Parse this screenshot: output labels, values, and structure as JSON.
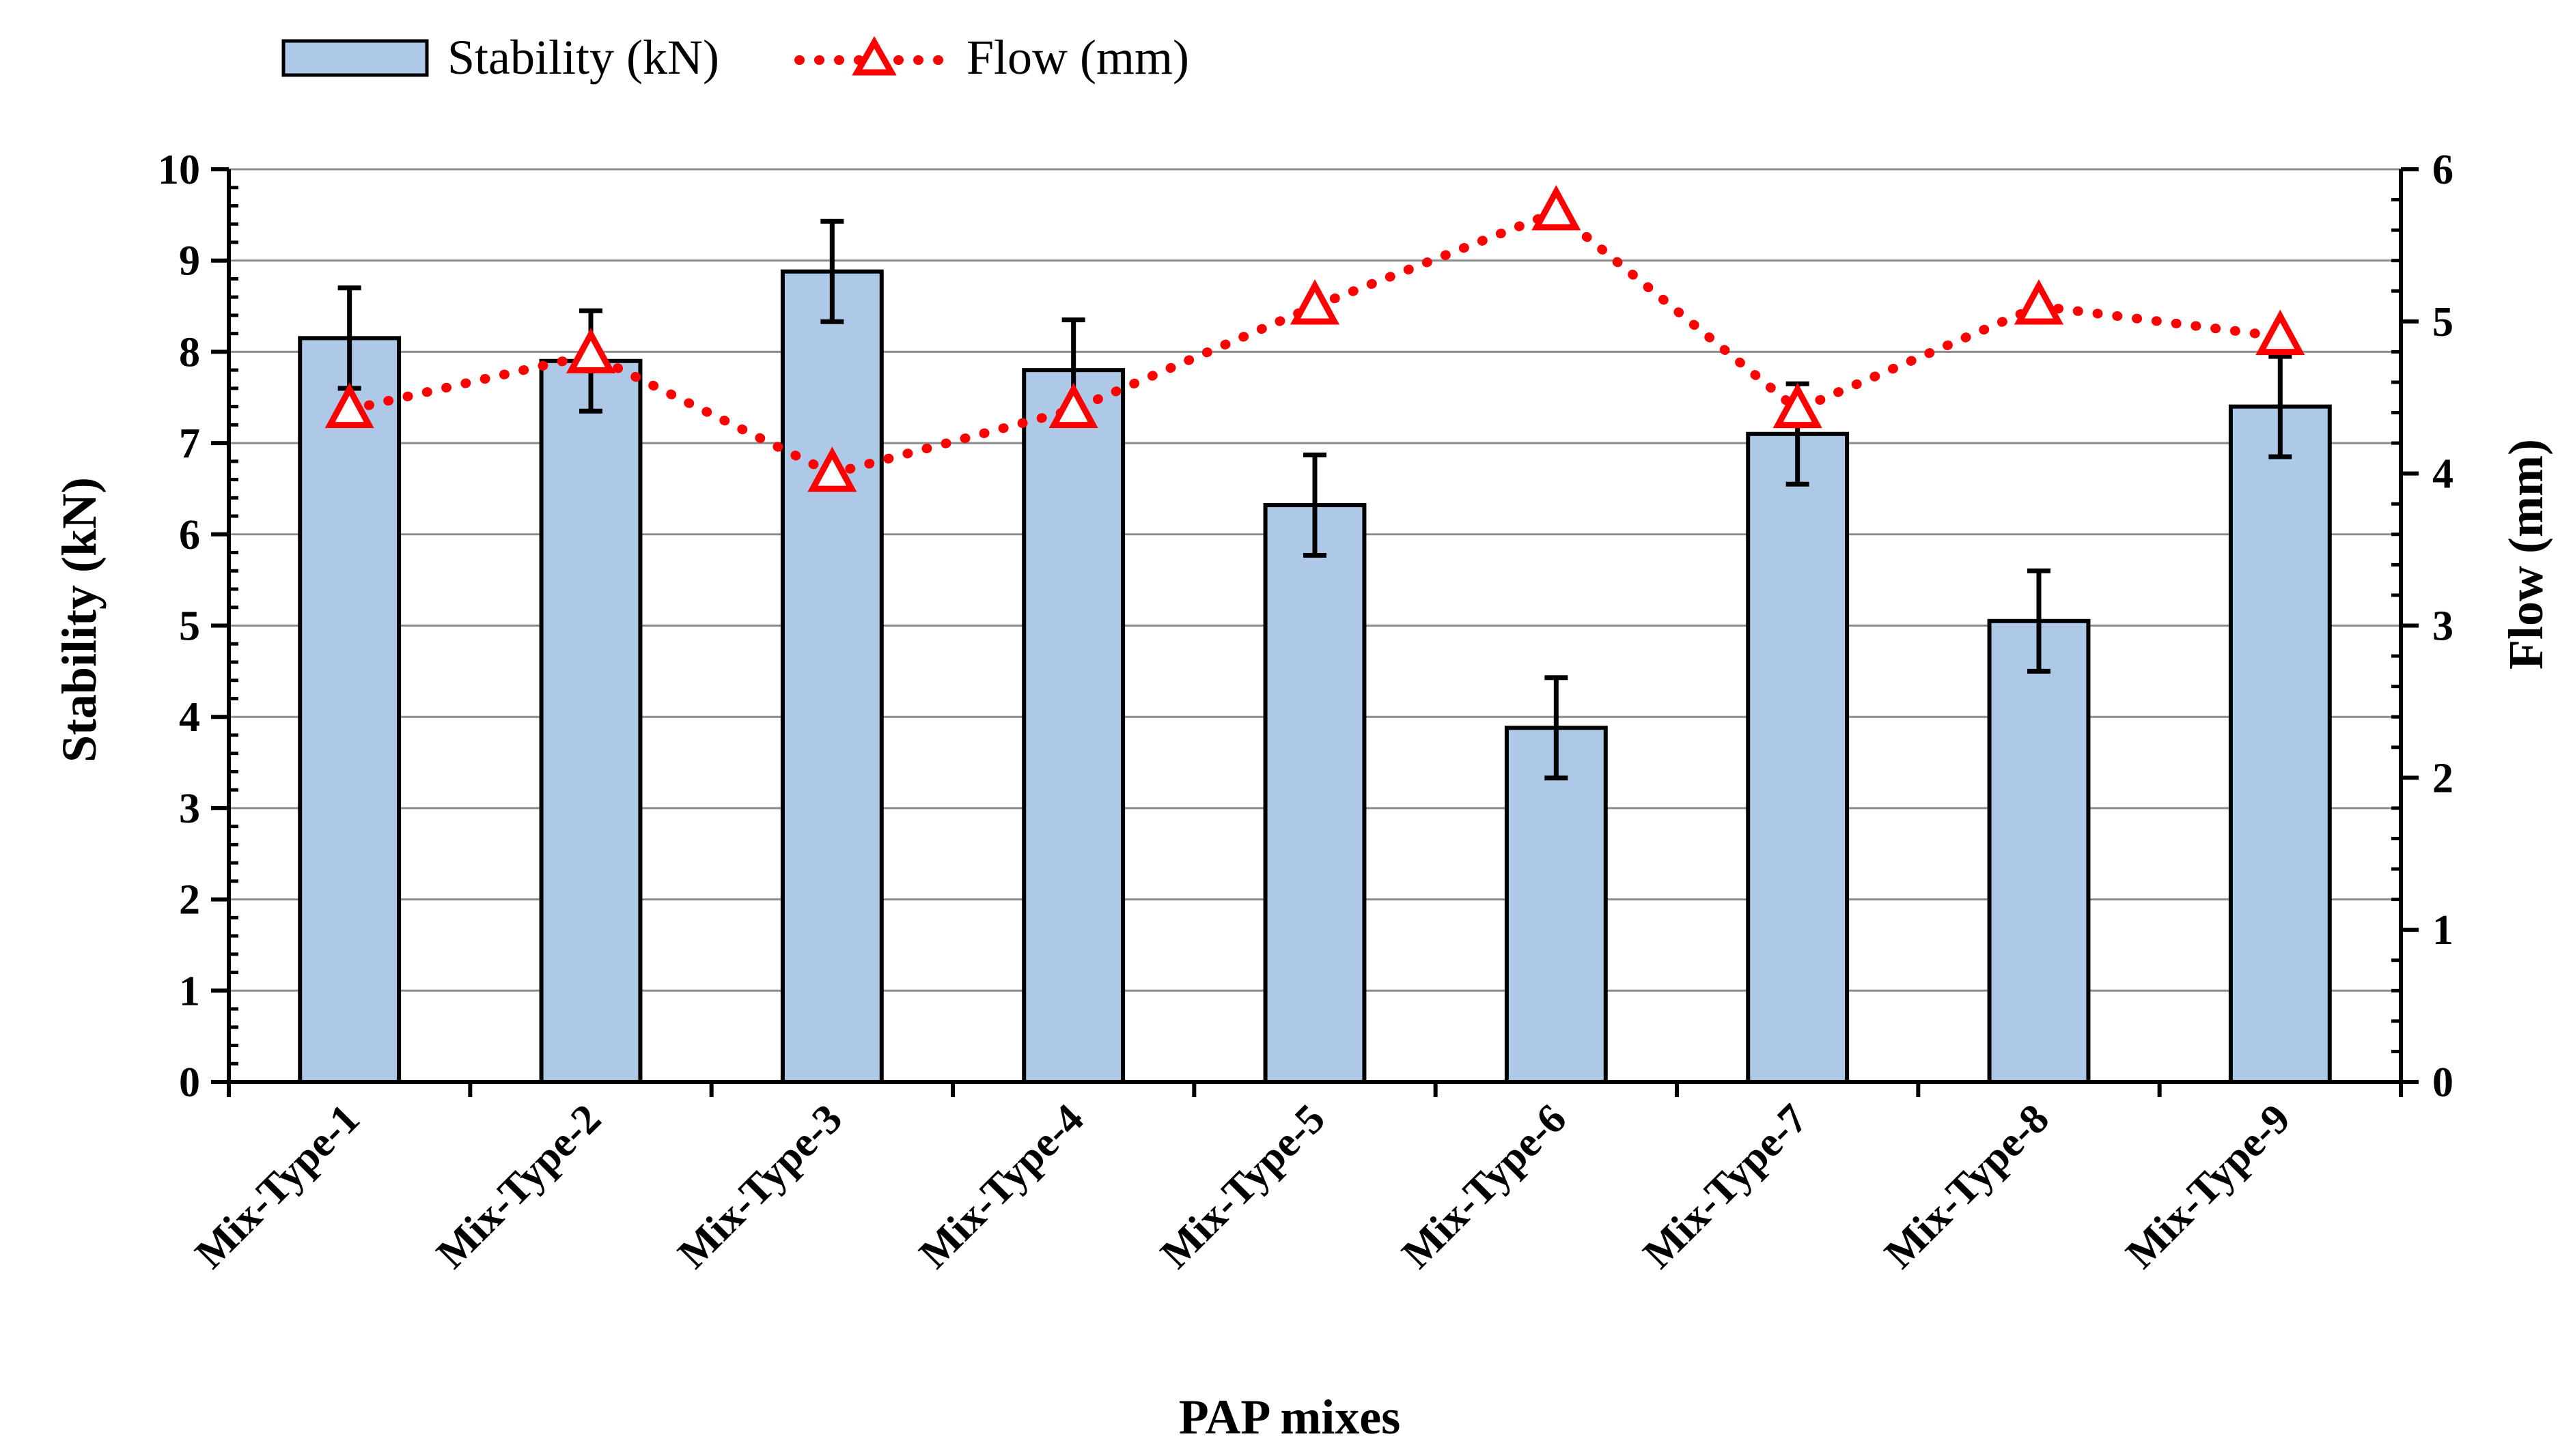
{
  "chart_data": {
    "type": "bar",
    "categories": [
      "Mix-Type-1",
      "Mix-Type-2",
      "Mix-Type-3",
      "Mix-Type-4",
      "Mix-Type-5",
      "Mix-Type-6",
      "Mix-Type-7",
      "Mix-Type-8",
      "Mix-Type-9"
    ],
    "series": [
      {
        "name": "Stability (kN)",
        "kind": "bar",
        "axis": "left",
        "values": [
          8.15,
          7.9,
          8.88,
          7.8,
          6.32,
          3.88,
          7.1,
          5.05,
          7.4
        ],
        "error": [
          0.55,
          0.55,
          0.55,
          0.55,
          0.55,
          0.55,
          0.55,
          0.55,
          0.55
        ],
        "color": "#aec8e8"
      },
      {
        "name": "Flow (mm)",
        "kind": "line",
        "axis": "right",
        "values": [
          4.42,
          4.78,
          4.0,
          4.42,
          5.1,
          5.72,
          4.42,
          5.1,
          4.9
        ],
        "color": "#ff0000"
      }
    ],
    "xlabel": "PAP mixes",
    "ylabel": "Stability (kN)",
    "y2label": "Flow (mm)",
    "ylim": [
      0,
      10
    ],
    "y2lim": [
      0,
      6
    ],
    "yticks": [
      0,
      1,
      2,
      3,
      4,
      5,
      6,
      7,
      8,
      9,
      10
    ],
    "y2ticks": [
      0,
      1,
      2,
      3,
      4,
      5,
      6
    ],
    "grid": true,
    "legend_position": "top-left"
  }
}
